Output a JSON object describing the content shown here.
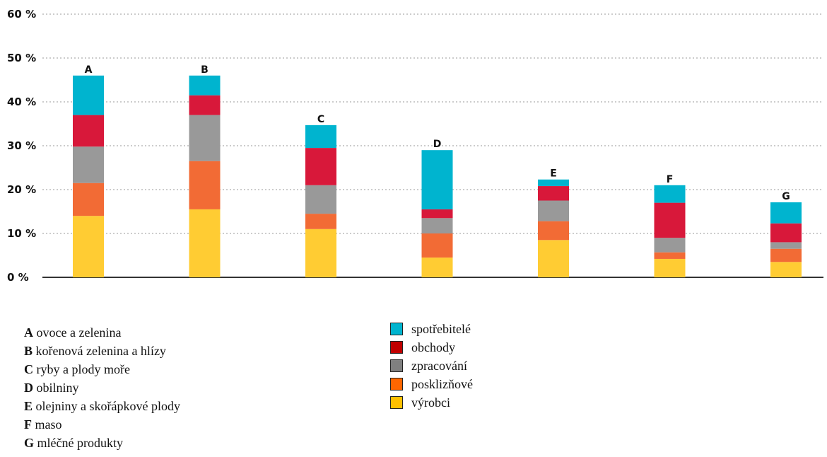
{
  "chart_data": {
    "type": "bar",
    "stacked": true,
    "ylim": [
      0,
      60
    ],
    "yticks": [
      "0 %",
      "10 %",
      "20 %",
      "30 %",
      "40 %",
      "50 %",
      "60 %"
    ],
    "grid": true,
    "categories": [
      "A",
      "B",
      "C",
      "D",
      "E",
      "F",
      "G"
    ],
    "series": [
      {
        "name": "výrobci",
        "color": "#FFCC33",
        "values": [
          14,
          15.5,
          11,
          4.5,
          8.5,
          4.2,
          3.5
        ]
      },
      {
        "name": "posklizňové",
        "color": "#F26B35",
        "values": [
          7.5,
          11,
          3.5,
          5.5,
          4.3,
          1.5,
          3
        ]
      },
      {
        "name": "zpracování",
        "color": "#999999",
        "values": [
          8.3,
          10.5,
          6.5,
          3.5,
          4.7,
          3.3,
          1.5
        ]
      },
      {
        "name": "obchody",
        "color": "#D8183A",
        "values": [
          7.2,
          4.5,
          8.5,
          2,
          3.3,
          8,
          4.3
        ]
      },
      {
        "name": "spotřebitelé",
        "color": "#00B4CF",
        "values": [
          9,
          4.5,
          5.2,
          13.5,
          1.5,
          4,
          4.8
        ]
      }
    ],
    "category_legend": [
      {
        "letter": "A",
        "text": "ovoce a zelenina"
      },
      {
        "letter": "B",
        "text": "kořenová zelenina a hlízy"
      },
      {
        "letter": "C",
        "text": "ryby a plody moře"
      },
      {
        "letter": "D",
        "text": "obilniny"
      },
      {
        "letter": "E",
        "text": "olejniny a skořápkové plody"
      },
      {
        "letter": "F",
        "text": "maso"
      },
      {
        "letter": "G",
        "text": "mléčné produkty"
      }
    ],
    "series_legend": [
      {
        "name": "spotřebitelé",
        "color": "#00B4CF"
      },
      {
        "name": "obchody",
        "color": "#C00000"
      },
      {
        "name": "zpracování",
        "color": "#808080"
      },
      {
        "name": "posklizňové",
        "color": "#FF6600"
      },
      {
        "name": "výrobci",
        "color": "#FFC000"
      }
    ]
  }
}
